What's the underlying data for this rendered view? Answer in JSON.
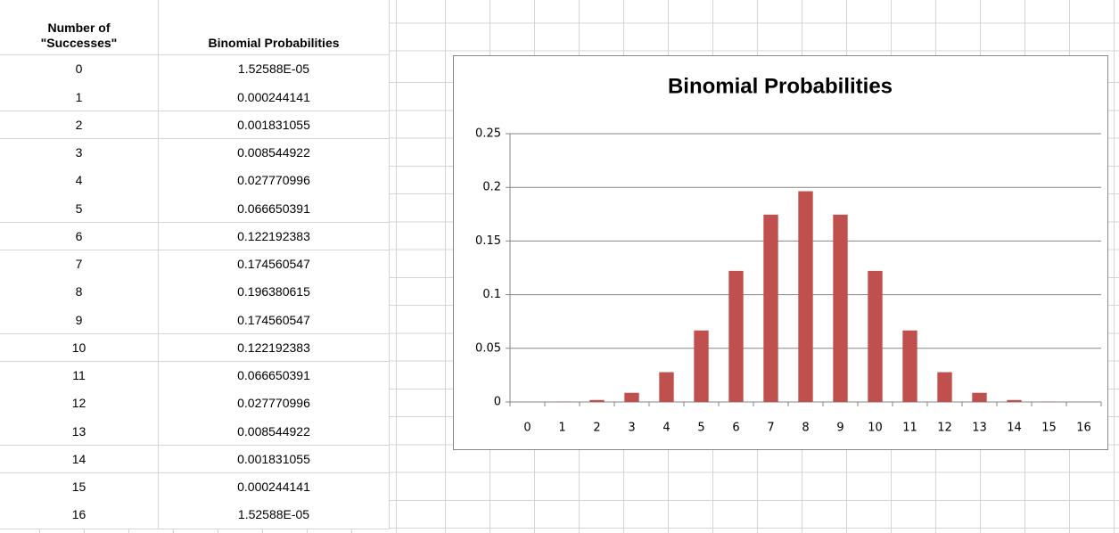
{
  "table": {
    "header": [
      [
        "Number of",
        "\"Successes\""
      ],
      [
        "Binomial Probabilities"
      ]
    ],
    "rows": [
      [
        "0",
        "1.52588E-05"
      ],
      [
        "1",
        "0.000244141"
      ],
      [
        "2",
        "0.001831055"
      ],
      [
        "3",
        "0.008544922"
      ],
      [
        "4",
        "0.027770996"
      ],
      [
        "5",
        "0.066650391"
      ],
      [
        "6",
        "0.122192383"
      ],
      [
        "7",
        "0.174560547"
      ],
      [
        "8",
        "0.196380615"
      ],
      [
        "9",
        "0.174560547"
      ],
      [
        "10",
        "0.122192383"
      ],
      [
        "11",
        "0.066650391"
      ],
      [
        "12",
        "0.027770996"
      ],
      [
        "13",
        "0.008544922"
      ],
      [
        "14",
        "0.001831055"
      ],
      [
        "15",
        "0.000244141"
      ],
      [
        "16",
        "1.52588E-05"
      ]
    ]
  },
  "chart_data": {
    "type": "bar",
    "title": "Binomial Probabilities",
    "categories": [
      "0",
      "1",
      "2",
      "3",
      "4",
      "5",
      "6",
      "7",
      "8",
      "9",
      "10",
      "11",
      "12",
      "13",
      "14",
      "15",
      "16"
    ],
    "values": [
      1.52588e-05,
      0.000244141,
      0.001831055,
      0.008544922,
      0.027770996,
      0.066650391,
      0.122192383,
      0.174560547,
      0.196380615,
      0.174560547,
      0.122192383,
      0.066650391,
      0.027770996,
      0.008544922,
      0.001831055,
      0.000244141,
      1.52588e-05
    ],
    "color": "#c0504d",
    "ylim": [
      0,
      0.25
    ],
    "yticks": [
      0,
      0.05,
      0.1,
      0.15,
      0.2,
      0.25
    ],
    "grid": true
  }
}
